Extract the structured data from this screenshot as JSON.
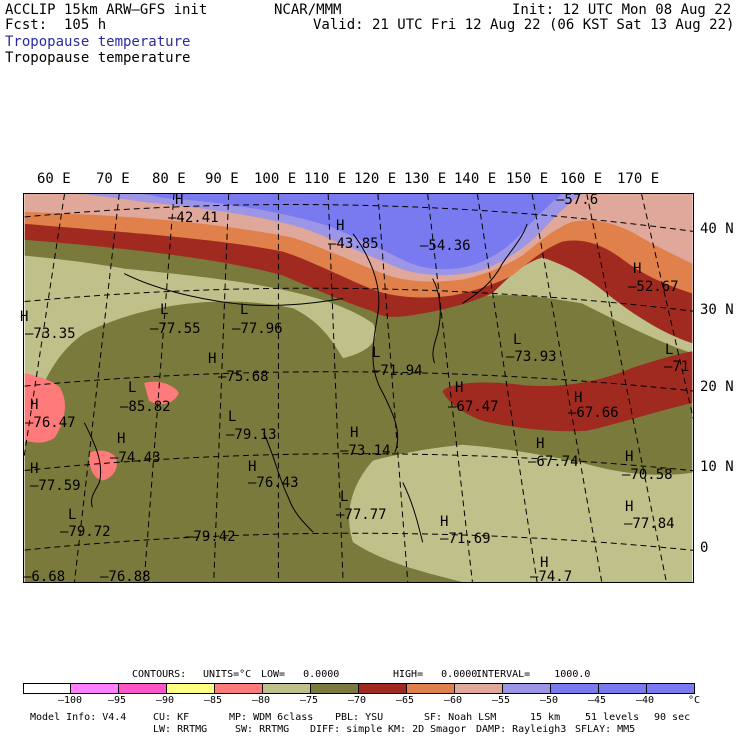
{
  "header": {
    "model": "ACCLIP 15km ARW–GFS init",
    "fcst": "Fcst:  105 h",
    "org": "NCAR/MMM",
    "init": "Init: 12 UTC Mon 08 Aug 22",
    "valid": "Valid: 21 UTC Fri 12 Aug 22 (06 KST Sat 13 Aug 22)",
    "field1": "Tropopause temperature",
    "field2": "Tropopause temperature"
  },
  "colors": {
    "field1": "#2a2aa0",
    "bins": [
      "#ffffff",
      "#ff80ff",
      "#ff55c8",
      "#ffff80",
      "#ff7a7a",
      "#c0c08a",
      "#7a7a3c",
      "#a02a20",
      "#e0804a",
      "#e0a89a",
      "#9d96e6",
      "#7a7af0",
      "#7a7af0",
      "#7a7af5"
    ]
  },
  "lon_labels": [
    "60 E",
    "70 E",
    "80 E",
    "90 E",
    "100 E",
    "110 E",
    "120 E",
    "130 E",
    "140 E",
    "150 E",
    "160 E",
    "170 E"
  ],
  "lat_labels": [
    "40 N",
    "30 N",
    "20 N",
    "10 N",
    "0"
  ],
  "map_labels": [
    {
      "t": "H",
      "id": "h1"
    },
    {
      "t": "–42.41",
      "id": "v1"
    },
    {
      "t": "H",
      "id": "h2"
    },
    {
      "t": "–43.85",
      "id": "v2"
    },
    {
      "t": "–54.36",
      "id": "v3"
    },
    {
      "t": "–57.6",
      "id": "v4"
    },
    {
      "t": "H",
      "id": "h5"
    },
    {
      "t": "–52.67",
      "id": "v5"
    },
    {
      "t": "H",
      "id": "h6"
    },
    {
      "t": "–73.35",
      "id": "v6"
    },
    {
      "t": "L",
      "id": "h7"
    },
    {
      "t": "–77.55",
      "id": "v7"
    },
    {
      "t": "L",
      "id": "h8"
    },
    {
      "t": "–77.96",
      "id": "v8"
    },
    {
      "t": "H",
      "id": "h9"
    },
    {
      "t": "–75.68",
      "id": "v9"
    },
    {
      "t": "L",
      "id": "h10"
    },
    {
      "t": "–71.94",
      "id": "v10"
    },
    {
      "t": "L",
      "id": "h11"
    },
    {
      "t": "–73.93",
      "id": "v11"
    },
    {
      "t": "L",
      "id": "h12"
    },
    {
      "t": "–71",
      "id": "v12"
    },
    {
      "t": "H",
      "id": "h13"
    },
    {
      "t": "–76.47",
      "id": "v13"
    },
    {
      "t": "L",
      "id": "h14"
    },
    {
      "t": "–85.82",
      "id": "v14"
    },
    {
      "t": "H",
      "id": "h15"
    },
    {
      "t": "–67.47",
      "id": "v15"
    },
    {
      "t": "H",
      "id": "h16"
    },
    {
      "t": "–67.66",
      "id": "v16"
    },
    {
      "t": "L",
      "id": "h17"
    },
    {
      "t": "–79.13",
      "id": "v17"
    },
    {
      "t": "H",
      "id": "h18"
    },
    {
      "t": "–74.43",
      "id": "v18"
    },
    {
      "t": "H",
      "id": "h19"
    },
    {
      "t": "–73.14",
      "id": "v19"
    },
    {
      "t": "H",
      "id": "h20"
    },
    {
      "t": "–67.74",
      "id": "v20"
    },
    {
      "t": "H",
      "id": "h21"
    },
    {
      "t": "–70.58",
      "id": "v21"
    },
    {
      "t": "H",
      "id": "h22"
    },
    {
      "t": "–77.59",
      "id": "v22"
    },
    {
      "t": "H",
      "id": "h23"
    },
    {
      "t": "–76.43",
      "id": "v23"
    },
    {
      "t": "L",
      "id": "h24"
    },
    {
      "t": "–77.77",
      "id": "v24"
    },
    {
      "t": "H",
      "id": "h25"
    },
    {
      "t": "–77.84",
      "id": "v25"
    },
    {
      "t": "L",
      "id": "h26"
    },
    {
      "t": "–79.72",
      "id": "v26"
    },
    {
      "t": "–79.42",
      "id": "v27"
    },
    {
      "t": "H",
      "id": "h28"
    },
    {
      "t": "–71.69",
      "id": "v28"
    },
    {
      "t": "H",
      "id": "h29"
    },
    {
      "t": "–74.7",
      "id": "v29"
    },
    {
      "t": "–76.88",
      "id": "v30"
    },
    {
      "t": "–6.68",
      "id": "v31"
    }
  ],
  "contour_info": {
    "contours": "CONTOURS:",
    "units": "UNITS=°C",
    "low": "LOW=   0.0000",
    "high": "HIGH=   0.0000",
    "interval": "INTERVAL=    1000.0"
  },
  "colorbar_ticks": [
    "–100",
    "–95",
    "–90",
    "–85",
    "–80",
    "–75",
    "–70",
    "–65",
    "–60",
    "–55",
    "–50",
    "–45",
    "–40"
  ],
  "colorbar_unit": "°C",
  "footer": {
    "model_info": "Model Info: V4.4",
    "cu": "CU: KF",
    "mp": "MP: WDM 6class",
    "pbl": "PBL: YSU",
    "sf": "SF: Noah LSM",
    "res": "15 km",
    "levels": "51 levels",
    "dt": "90 sec",
    "lw": "LW: RRTMG",
    "sw": "SW: RRTMG",
    "diff": "DIFF: simple",
    "km": "KM: 2D Smagor",
    "damp": "DAMP: Rayleigh3",
    "sflay": "SFLAY: MM5"
  }
}
